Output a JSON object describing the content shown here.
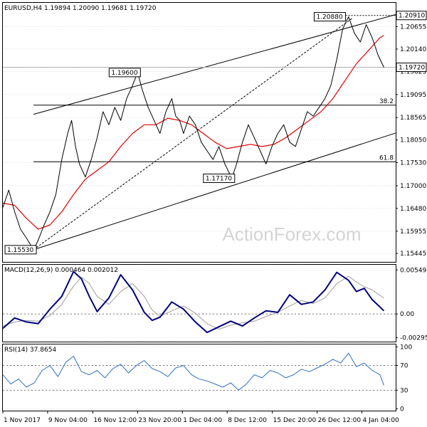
{
  "chart_data": [
    {
      "type": "line",
      "panel": "price",
      "title": "EURUSD,H4  1.19894 1.20090 1.19681 1.19720",
      "watermark": "ActionForex.com",
      "ylim": [
        1.1525,
        1.212
      ],
      "x_range": [
        0,
        100
      ],
      "y_ticks": [
        "1.20655",
        "1.20140",
        "1.19625",
        "1.19095",
        "1.18565",
        "1.18050",
        "1.17530",
        "1.17000",
        "1.16480",
        "1.15955",
        "1.15445"
      ],
      "current_price": {
        "value": 1.1972,
        "label": "1.19720"
      },
      "high_level": {
        "value": 1.2091,
        "label": "1.20910"
      },
      "annotations": [
        {
          "label": "1.19600",
          "x": 34.3,
          "y": 1.196
        },
        {
          "label": "1.20880",
          "x": 86.5,
          "y": 1.2088
        },
        {
          "label": "1.17170",
          "x": 58.3,
          "y": 1.1717
        },
        {
          "label": "1.15530",
          "x": 7.8,
          "y": 1.1553
        }
      ],
      "fib_levels": [
        {
          "label": "38.2",
          "value": 1.1885,
          "x_start": 7.8
        },
        {
          "label": "61.8",
          "value": 1.1755,
          "x_start": 7.8
        }
      ],
      "channel_upper": [
        [
          7.8,
          1.1864
        ],
        [
          100,
          1.2093
        ]
      ],
      "channel_lower": [
        [
          7.8,
          1.1553
        ],
        [
          100,
          1.1821
        ]
      ],
      "dashed_trend": [
        [
          7.8,
          1.1553
        ],
        [
          89.0,
          1.2085
        ]
      ],
      "series": [
        {
          "name": "",
          "color": "#000000",
          "x": [
            0,
            1.5,
            3,
            4.5,
            6,
            7.8,
            9,
            10.5,
            12,
            13.5,
            15,
            16.5,
            17.5,
            18.5,
            19.5,
            21,
            22.5,
            24,
            25.5,
            27,
            28.5,
            30,
            31.5,
            33,
            34.3,
            35.5,
            37,
            38.5,
            40,
            41.5,
            43,
            44,
            45,
            46,
            47.5,
            49,
            50.5,
            52,
            53.5,
            55,
            56.5,
            58.3,
            59.5,
            61,
            62.5,
            64,
            65.5,
            67,
            68.5,
            70,
            71.5,
            73,
            74.5,
            76,
            77.5,
            79,
            80.5,
            82,
            83.5,
            85,
            86.5,
            88,
            89.5,
            91,
            92.5,
            94,
            95.5,
            97
          ],
          "y": [
            1.165,
            1.169,
            1.164,
            1.16,
            1.158,
            1.1553,
            1.1575,
            1.161,
            1.164,
            1.168,
            1.176,
            1.182,
            1.185,
            1.179,
            1.175,
            1.172,
            1.176,
            1.181,
            1.187,
            1.184,
            1.188,
            1.185,
            1.19,
            1.193,
            1.196,
            1.192,
            1.188,
            1.185,
            1.182,
            1.187,
            1.19,
            1.186,
            1.185,
            1.182,
            1.186,
            1.184,
            1.18,
            1.178,
            1.176,
            1.179,
            1.175,
            1.1717,
            1.175,
            1.18,
            1.184,
            1.181,
            1.178,
            1.175,
            1.179,
            1.182,
            1.184,
            1.18,
            1.179,
            1.183,
            1.187,
            1.186,
            1.188,
            1.19,
            1.193,
            1.199,
            1.206,
            1.2088,
            1.205,
            1.203,
            1.207,
            1.204,
            1.2,
            1.1972
          ]
        },
        {
          "name": "",
          "color": "#e00000",
          "x": [
            0,
            3,
            6,
            9,
            12,
            15,
            18,
            21,
            24,
            27,
            30,
            33,
            36,
            39,
            42,
            45,
            48,
            51,
            54,
            57,
            60,
            63,
            66,
            69,
            72,
            75,
            78,
            81,
            84,
            87,
            90,
            93,
            96,
            97
          ],
          "y": [
            1.166,
            1.1655,
            1.1625,
            1.16,
            1.161,
            1.164,
            1.168,
            1.1715,
            1.1735,
            1.1755,
            1.179,
            1.182,
            1.184,
            1.184,
            1.1855,
            1.185,
            1.184,
            1.182,
            1.18,
            1.1785,
            1.179,
            1.1795,
            1.179,
            1.1795,
            1.181,
            1.183,
            1.185,
            1.187,
            1.19,
            1.194,
            1.198,
            1.201,
            1.204,
            1.2045
          ]
        }
      ]
    },
    {
      "type": "line",
      "panel": "macd",
      "title": "MACD(12,26,9) 0.000464 0.002012",
      "ylim": [
        -0.00345,
        0.00615
      ],
      "y_ticks": [
        "0.005497",
        "0.00",
        "-0.002955"
      ],
      "zero_line": 0,
      "x_range": [
        0,
        100
      ],
      "series": [
        {
          "name": "",
          "color": "#000080",
          "x": [
            0,
            3,
            6,
            9,
            12,
            15,
            18,
            20,
            22,
            24,
            27,
            30,
            33,
            36,
            38,
            40,
            43,
            46,
            49,
            52,
            55,
            58,
            61,
            64,
            67,
            70,
            73,
            76,
            79,
            82,
            85,
            88,
            90,
            92,
            94,
            97
          ],
          "y": [
            -0.0018,
            -0.0005,
            -0.001,
            -0.0012,
            0.0006,
            0.0022,
            0.0053,
            0.0044,
            0.0022,
            0.0003,
            0.002,
            0.0049,
            0.003,
            0.0002,
            -0.0008,
            -0.0004,
            0.0015,
            0.0006,
            -0.001,
            -0.0023,
            -0.0016,
            -0.0009,
            -0.0015,
            -0.0005,
            0.0004,
            0.0002,
            0.0024,
            0.0012,
            0.0015,
            0.003,
            0.0052,
            0.0042,
            0.0028,
            0.0032,
            0.0018,
            0.0004
          ]
        },
        {
          "name": "",
          "color": "#a0a0a0",
          "x": [
            0,
            3,
            6,
            9,
            12,
            15,
            18,
            20,
            22,
            24,
            27,
            30,
            33,
            36,
            38,
            40,
            43,
            46,
            49,
            52,
            55,
            58,
            61,
            64,
            67,
            70,
            73,
            76,
            79,
            82,
            85,
            88,
            90,
            92,
            94,
            97
          ],
          "y": [
            -0.0015,
            -0.001,
            -0.0008,
            -0.0009,
            -0.0002,
            0.0012,
            0.0035,
            0.0046,
            0.0038,
            0.0022,
            0.0012,
            0.0028,
            0.0038,
            0.0022,
            0.0005,
            -0.0003,
            0.0004,
            0.001,
            0.0001,
            -0.0012,
            -0.0019,
            -0.0014,
            -0.0011,
            -0.0009,
            -0.0003,
            0.0002,
            0.001,
            0.0017,
            0.0013,
            0.002,
            0.0038,
            0.0047,
            0.004,
            0.0034,
            0.003,
            0.002
          ]
        }
      ]
    },
    {
      "type": "line",
      "panel": "rsi",
      "title": "RSI(14) 37.8654",
      "ylim": [
        -3,
        104
      ],
      "y_ticks": [
        "100",
        "70",
        "30",
        "0"
      ],
      "ref_levels": [
        70,
        30
      ],
      "x_range": [
        0,
        100
      ],
      "x_tick_labels": [
        "1 Nov 2017",
        "9 Nov 04:00",
        "16 Nov 12:00",
        "23 Nov 20:00",
        "1 Dec 04:00",
        "8 Dec 12:00",
        "15 Dec 20:00",
        "26 Dec 12:00",
        "4 Jan 04:00"
      ],
      "x_tick_positions": [
        0,
        11.4,
        22.9,
        34.3,
        45.7,
        57.1,
        68.6,
        80,
        91.4
      ],
      "series": [
        {
          "name": "",
          "color": "#3070c0",
          "x": [
            0,
            2,
            4,
            6,
            8,
            10,
            12,
            14,
            16,
            18,
            20,
            22,
            24,
            26,
            28,
            30,
            32,
            34,
            36,
            38,
            40,
            42,
            44,
            46,
            48,
            50,
            52,
            54,
            56,
            58,
            60,
            62,
            64,
            66,
            68,
            70,
            72,
            74,
            76,
            78,
            80,
            82,
            84,
            86,
            88,
            90,
            92,
            94,
            96,
            97
          ],
          "y": [
            55,
            40,
            48,
            35,
            42,
            62,
            70,
            52,
            75,
            85,
            60,
            55,
            62,
            50,
            65,
            72,
            58,
            70,
            78,
            65,
            60,
            52,
            66,
            70,
            55,
            48,
            45,
            40,
            35,
            42,
            30,
            40,
            55,
            50,
            62,
            58,
            50,
            55,
            64,
            60,
            66,
            72,
            80,
            74,
            90,
            68,
            74,
            62,
            55,
            38
          ]
        }
      ]
    }
  ]
}
